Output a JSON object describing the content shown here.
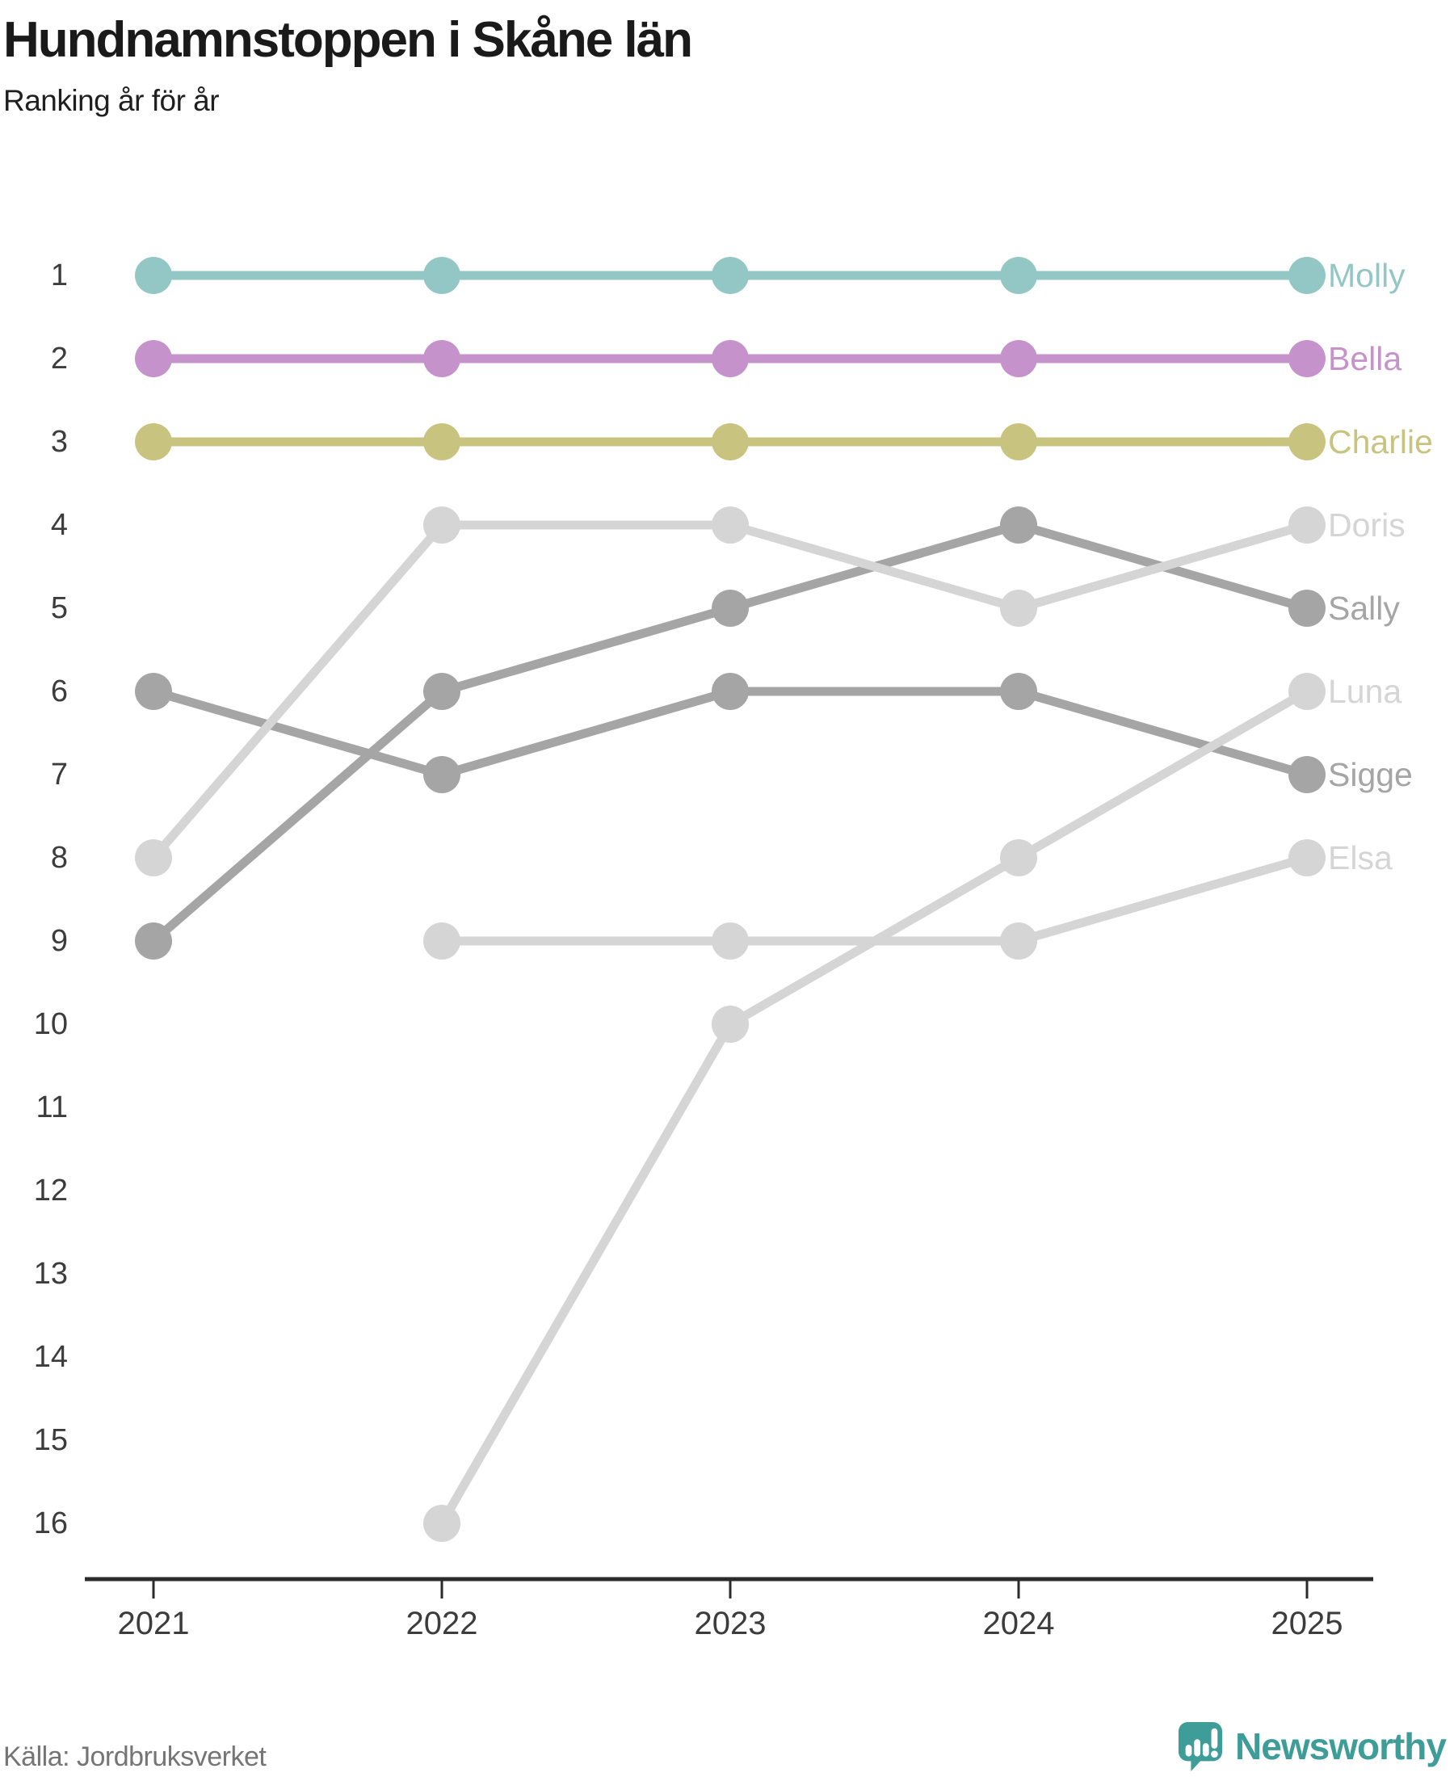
{
  "header": {
    "title": "Hundnamnstoppen i Skåne län",
    "subtitle": "Ranking år för år"
  },
  "chart_data": {
    "type": "line",
    "subtype": "bump-chart-ranking",
    "title": "Hundnamnstoppen i Skåne län",
    "subtitle": "Ranking år för år",
    "x": [
      "2021",
      "2022",
      "2023",
      "2024",
      "2025"
    ],
    "y_ticks": [
      "1",
      "2",
      "3",
      "4",
      "5",
      "6",
      "7",
      "8",
      "9",
      "10",
      "11",
      "12",
      "13",
      "14",
      "15",
      "16"
    ],
    "ylim": [
      1,
      16
    ],
    "y_inverted": true,
    "grid": false,
    "legend_position": "end-of-line-labels",
    "series": [
      {
        "name": "Molly",
        "color": "#93c7c5",
        "values": [
          1,
          1,
          1,
          1,
          1
        ]
      },
      {
        "name": "Bella",
        "color": "#c592cb",
        "values": [
          2,
          2,
          2,
          2,
          2
        ]
      },
      {
        "name": "Charlie",
        "color": "#c8c480",
        "values": [
          3,
          3,
          3,
          3,
          3
        ]
      },
      {
        "name": "Doris",
        "color": "#d5d5d5",
        "values": [
          8,
          4,
          4,
          5,
          4
        ]
      },
      {
        "name": "Sally",
        "color": "#a5a5a5",
        "values": [
          9,
          6,
          5,
          4,
          5
        ]
      },
      {
        "name": "Luna",
        "color": "#d5d5d5",
        "values": [
          null,
          16,
          10,
          8,
          6
        ]
      },
      {
        "name": "Sigge",
        "color": "#a5a5a5",
        "values": [
          6,
          7,
          6,
          6,
          7
        ]
      },
      {
        "name": "Elsa",
        "color": "#d5d5d5",
        "values": [
          null,
          9,
          9,
          9,
          8
        ]
      }
    ],
    "draw_order": [
      "Elsa",
      "Sigge",
      "Luna",
      "Sally",
      "Doris",
      "Molly",
      "Bella",
      "Charlie"
    ]
  },
  "footer": {
    "source": "Källa: Jordbruksverket",
    "brand": "Newsworthy"
  },
  "colors": {
    "axis": "#2b2b2b",
    "tick_label": "#3c3c3c",
    "source_text": "#757575",
    "brand_teal": "#3f9d99"
  }
}
